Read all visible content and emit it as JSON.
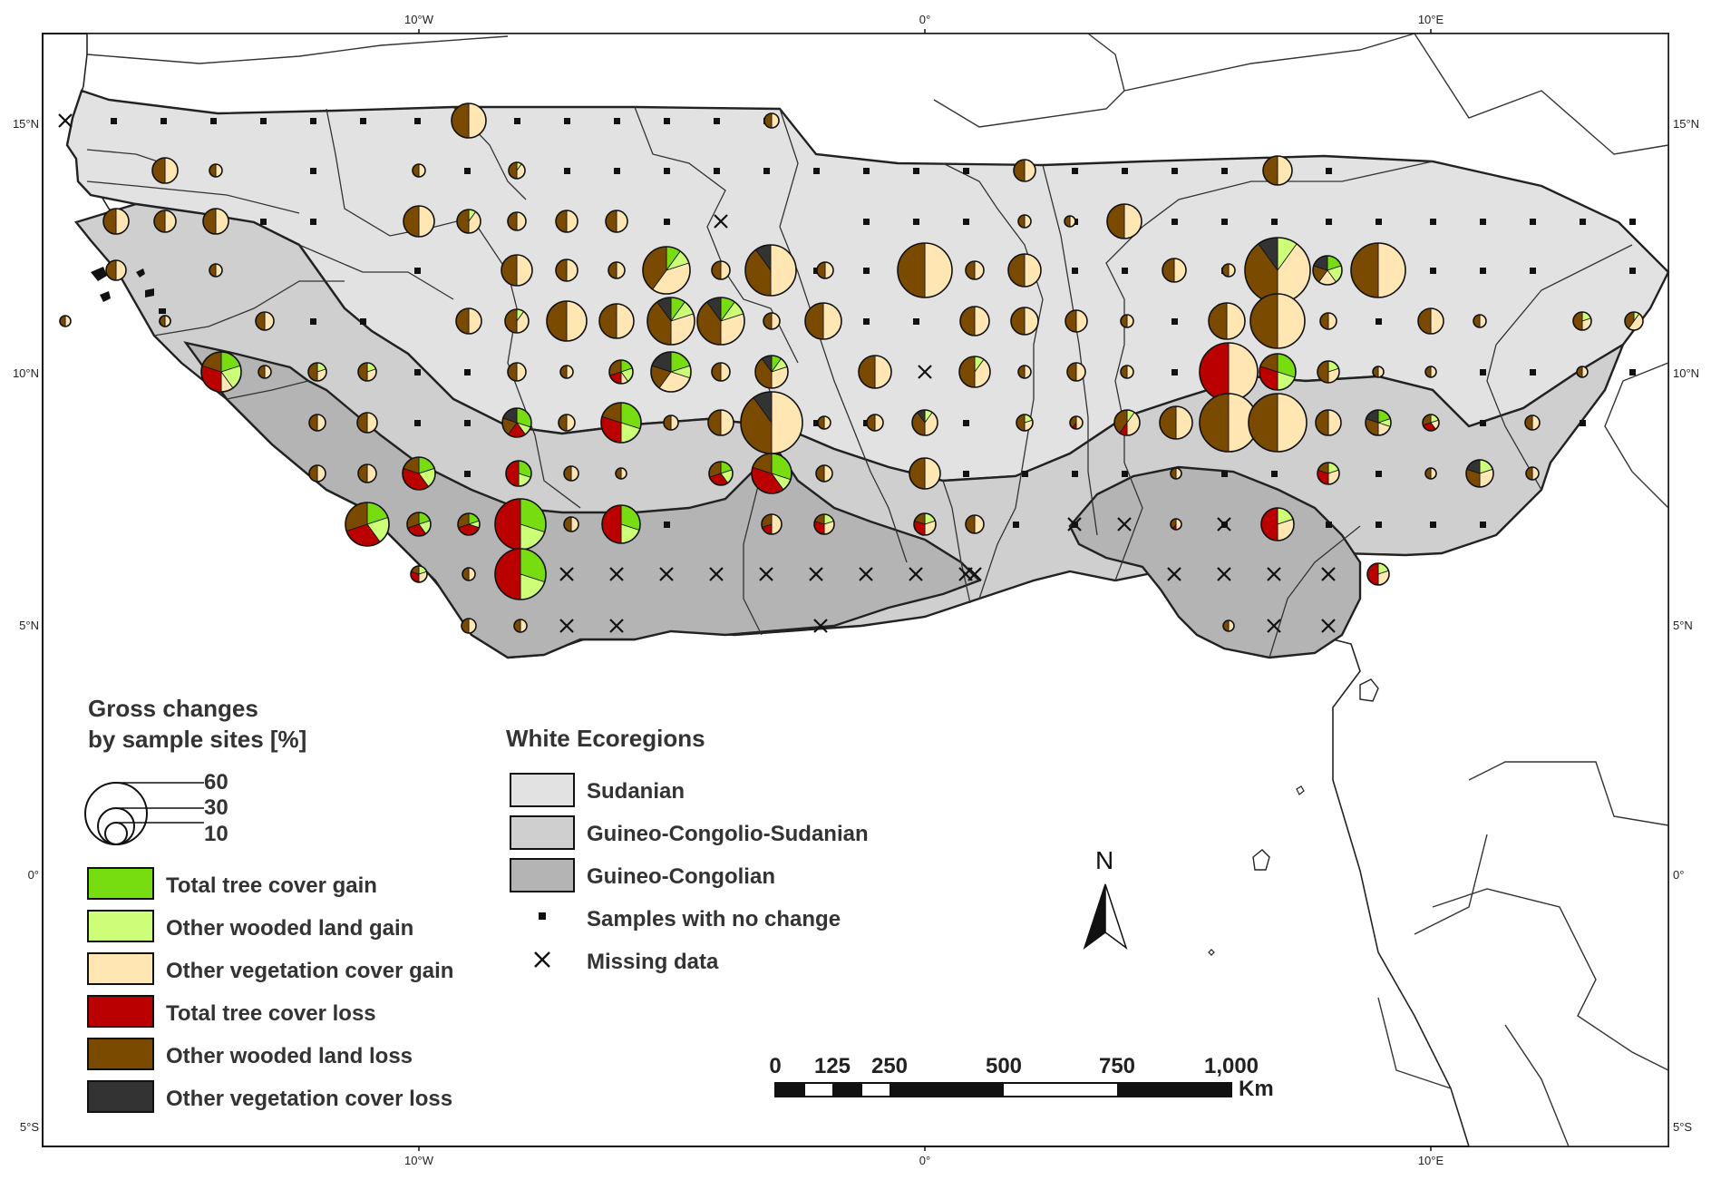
{
  "axes": {
    "top": [
      "10°W",
      "0°",
      "10°E"
    ],
    "bottom": [
      "10°W",
      "0°",
      "10°E"
    ],
    "left": [
      "15°N",
      "10°N",
      "5°N",
      "0°",
      "5°S"
    ],
    "right": [
      "15°N",
      "10°N",
      "5°N",
      "0°",
      "5°S"
    ]
  },
  "legend_sites": {
    "title_line1": "Gross changes",
    "title_line2": "by sample sites [%]",
    "sizes": [
      "60",
      "30",
      "10"
    ],
    "classes": [
      {
        "label": "Total tree cover gain",
        "color": "#77dd11"
      },
      {
        "label": "Other wooded land gain",
        "color": "#ccff77"
      },
      {
        "label": "Other vegetation cover gain",
        "color": "#ffe6b3"
      },
      {
        "label": "Total tree cover loss",
        "color": "#bb0000"
      },
      {
        "label": "Other wooded land loss",
        "color": "#7a4a00"
      },
      {
        "label": "Other vegetation cover loss",
        "color": "#333333"
      }
    ]
  },
  "legend_eco": {
    "title": "White Ecoregions",
    "classes": [
      {
        "label": "Sudanian",
        "color": "#e2e2e2"
      },
      {
        "label": "Guineo-Congolio-Sudanian",
        "color": "#cfcfcf"
      },
      {
        "label": "Guineo-Congolian",
        "color": "#b4b4b4"
      }
    ],
    "no_change": "Samples with no change",
    "missing": "Missing data"
  },
  "scale": {
    "ticks": [
      "0",
      "125",
      "250",
      "500",
      "750",
      "1,000"
    ],
    "unit": "Km"
  },
  "north": "N"
}
